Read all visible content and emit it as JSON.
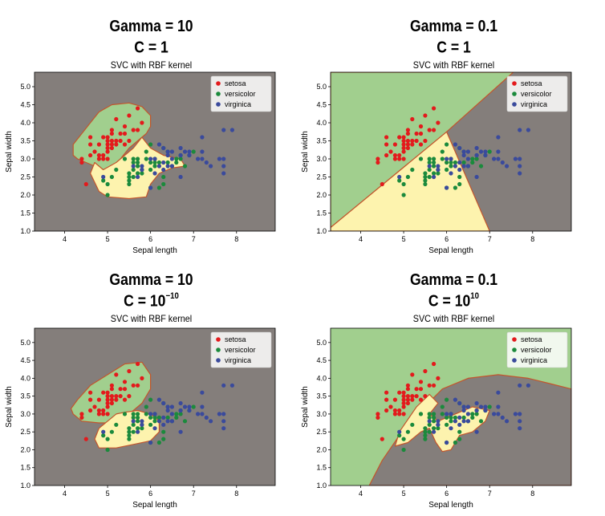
{
  "panels": [
    {
      "gamma_line": "Gamma = 10",
      "c_line": "C = 1",
      "c_exp": "",
      "subtitle": "SVC with RBF kernel"
    },
    {
      "gamma_line": "Gamma = 0.1",
      "c_line": "C = 1",
      "c_exp": "",
      "subtitle": "SVC with RBF kernel"
    },
    {
      "gamma_line": "Gamma = 10",
      "c_line": "C = 10",
      "c_exp": "−10",
      "subtitle": "SVC with RBF kernel"
    },
    {
      "gamma_line": "Gamma = 0.1",
      "c_line": "C = 10",
      "c_exp": "10",
      "subtitle": "SVC with RBF kernel"
    }
  ],
  "chart_data": [
    {
      "type": "scatter",
      "title": "SVC with RBF kernel",
      "xlabel": "Sepal length",
      "ylabel": "Sepal width",
      "xlim": [
        3.3,
        8.9
      ],
      "ylim": [
        1.0,
        5.4
      ],
      "xticks": [
        4,
        5,
        6,
        7,
        8
      ],
      "yticks": [
        1.0,
        1.5,
        2.0,
        2.5,
        3.0,
        3.5,
        4.0,
        4.5,
        5.0
      ],
      "legend_position": "top-right",
      "background_region": "virginica",
      "regions": [
        {
          "class": "setosa",
          "outline": [
            [
              4.3,
              3.0
            ],
            [
              4.5,
              2.9
            ],
            [
              4.7,
              2.8
            ],
            [
              4.9,
              2.6
            ],
            [
              5.1,
              2.7
            ],
            [
              5.3,
              3.0
            ],
            [
              5.5,
              3.3
            ],
            [
              5.7,
              3.5
            ],
            [
              5.9,
              3.7
            ],
            [
              6.0,
              3.9
            ],
            [
              6.0,
              4.2
            ],
            [
              5.8,
              4.45
            ],
            [
              5.5,
              4.55
            ],
            [
              5.1,
              4.5
            ],
            [
              4.8,
              4.3
            ],
            [
              4.6,
              4.0
            ],
            [
              4.4,
              3.7
            ],
            [
              4.2,
              3.4
            ],
            [
              4.2,
              3.1
            ]
          ]
        },
        {
          "class": "versicolor",
          "outline": [
            [
              4.6,
              2.6
            ],
            [
              4.7,
              2.9
            ],
            [
              4.9,
              2.7
            ],
            [
              5.2,
              2.9
            ],
            [
              5.6,
              3.3
            ],
            [
              5.8,
              3.6
            ],
            [
              6.0,
              3.3
            ],
            [
              6.3,
              3.1
            ],
            [
              6.7,
              3.0
            ],
            [
              6.8,
              2.8
            ],
            [
              6.5,
              2.75
            ],
            [
              6.2,
              2.6
            ],
            [
              6.0,
              2.3
            ],
            [
              5.9,
              1.95
            ],
            [
              5.5,
              1.9
            ],
            [
              5.0,
              1.95
            ],
            [
              4.8,
              2.1
            ],
            [
              4.7,
              2.35
            ]
          ]
        }
      ],
      "series": [
        {
          "name": "setosa",
          "color": "#e31a1c",
          "points": [
            [
              4.4,
              3.0
            ],
            [
              4.4,
              2.9
            ],
            [
              4.6,
              3.1
            ],
            [
              4.6,
              3.4
            ],
            [
              4.6,
              3.6
            ],
            [
              4.7,
              3.2
            ],
            [
              4.8,
              3.0
            ],
            [
              4.8,
              3.4
            ],
            [
              4.8,
              3.1
            ],
            [
              4.9,
              3.0
            ],
            [
              4.9,
              3.1
            ],
            [
              4.9,
              3.6
            ],
            [
              5.0,
              3.6
            ],
            [
              5.0,
              3.4
            ],
            [
              5.0,
              3.0
            ],
            [
              5.0,
              3.5
            ],
            [
              5.0,
              3.2
            ],
            [
              5.0,
              3.3
            ],
            [
              5.1,
              3.5
            ],
            [
              5.1,
              3.7
            ],
            [
              5.1,
              3.8
            ],
            [
              5.1,
              3.3
            ],
            [
              5.1,
              3.4
            ],
            [
              5.2,
              3.5
            ],
            [
              5.2,
              3.4
            ],
            [
              5.2,
              4.1
            ],
            [
              5.3,
              3.7
            ],
            [
              5.4,
              3.9
            ],
            [
              5.4,
              3.7
            ],
            [
              5.4,
              3.4
            ],
            [
              5.5,
              4.2
            ],
            [
              5.5,
              3.5
            ],
            [
              5.7,
              4.4
            ],
            [
              5.7,
              3.8
            ],
            [
              5.8,
              4.0
            ],
            [
              4.5,
              2.3
            ],
            [
              5.3,
              3.5
            ],
            [
              5.6,
              3.8
            ]
          ]
        },
        {
          "name": "versicolor",
          "color": "#1b8a3c",
          "points": [
            [
              4.9,
              2.4
            ],
            [
              5.0,
              2.0
            ],
            [
              5.0,
              2.3
            ],
            [
              5.1,
              2.5
            ],
            [
              5.2,
              2.7
            ],
            [
              5.4,
              3.0
            ],
            [
              5.5,
              2.3
            ],
            [
              5.5,
              2.4
            ],
            [
              5.5,
              2.5
            ],
            [
              5.5,
              2.6
            ],
            [
              5.6,
              2.9
            ],
            [
              5.6,
              3.0
            ],
            [
              5.6,
              2.5
            ],
            [
              5.6,
              2.7
            ],
            [
              5.7,
              2.8
            ],
            [
              5.7,
              2.6
            ],
            [
              5.7,
              2.9
            ],
            [
              5.7,
              3.0
            ],
            [
              5.8,
              2.7
            ],
            [
              5.8,
              2.6
            ],
            [
              5.9,
              3.0
            ],
            [
              5.9,
              3.2
            ],
            [
              6.0,
              2.2
            ],
            [
              6.0,
              2.9
            ],
            [
              6.0,
              2.7
            ],
            [
              6.0,
              3.4
            ],
            [
              6.1,
              2.9
            ],
            [
              6.1,
              2.8
            ],
            [
              6.1,
              3.0
            ],
            [
              6.2,
              2.2
            ],
            [
              6.2,
              2.9
            ],
            [
              6.3,
              3.3
            ],
            [
              6.3,
              2.5
            ],
            [
              6.3,
              2.3
            ],
            [
              6.4,
              3.2
            ],
            [
              6.4,
              2.9
            ],
            [
              6.5,
              2.8
            ],
            [
              6.6,
              2.9
            ],
            [
              6.6,
              3.0
            ],
            [
              6.7,
              3.1
            ],
            [
              6.7,
              3.0
            ],
            [
              6.8,
              2.8
            ],
            [
              6.9,
              3.1
            ],
            [
              7.0,
              3.2
            ]
          ]
        },
        {
          "name": "virginica",
          "color": "#3a4a9c",
          "points": [
            [
              4.9,
              2.5
            ],
            [
              5.6,
              2.8
            ],
            [
              5.7,
              2.5
            ],
            [
              5.8,
              2.7
            ],
            [
              5.8,
              2.8
            ],
            [
              6.0,
              3.0
            ],
            [
              6.0,
              2.2
            ],
            [
              6.1,
              3.0
            ],
            [
              6.1,
              2.6
            ],
            [
              6.2,
              3.4
            ],
            [
              6.2,
              2.8
            ],
            [
              6.3,
              3.3
            ],
            [
              6.3,
              2.9
            ],
            [
              6.3,
              2.7
            ],
            [
              6.4,
              3.2
            ],
            [
              6.4,
              2.8
            ],
            [
              6.4,
              3.1
            ],
            [
              6.5,
              3.0
            ],
            [
              6.5,
              3.2
            ],
            [
              6.5,
              2.8
            ],
            [
              6.7,
              3.3
            ],
            [
              6.7,
              2.5
            ],
            [
              6.7,
              3.1
            ],
            [
              6.8,
              3.2
            ],
            [
              6.9,
              3.2
            ],
            [
              6.9,
              3.1
            ],
            [
              7.1,
              3.0
            ],
            [
              7.2,
              3.6
            ],
            [
              7.2,
              3.2
            ],
            [
              7.2,
              3.0
            ],
            [
              7.3,
              2.9
            ],
            [
              7.4,
              2.8
            ],
            [
              7.6,
              3.0
            ],
            [
              7.7,
              3.8
            ],
            [
              7.7,
              2.6
            ],
            [
              7.7,
              2.8
            ],
            [
              7.7,
              3.0
            ],
            [
              7.9,
              3.8
            ]
          ]
        }
      ]
    },
    {
      "type": "scatter",
      "title": "SVC with RBF kernel",
      "xlabel": "Sepal length",
      "ylabel": "Sepal width",
      "xlim": [
        3.3,
        8.9
      ],
      "ylim": [
        1.0,
        5.4
      ],
      "xticks": [
        4,
        5,
        6,
        7,
        8
      ],
      "yticks": [
        1.0,
        1.5,
        2.0,
        2.5,
        3.0,
        3.5,
        4.0,
        4.5,
        5.0
      ],
      "legend_position": "top-right",
      "background_region": "virginica",
      "regions": [
        {
          "class": "setosa",
          "outline": [
            [
              3.3,
              1.1
            ],
            [
              6.0,
              3.75
            ],
            [
              7.55,
              5.4
            ],
            [
              3.3,
              5.4
            ]
          ]
        },
        {
          "class": "versicolor",
          "outline": [
            [
              3.3,
              1.0
            ],
            [
              3.3,
              1.1
            ],
            [
              6.0,
              3.75
            ],
            [
              7.0,
              1.0
            ]
          ]
        }
      ],
      "series": "same_as_panel_1"
    },
    {
      "type": "scatter",
      "title": "SVC with RBF kernel",
      "xlabel": "Sepal length",
      "ylabel": "Sepal width",
      "xlim": [
        3.3,
        8.9
      ],
      "ylim": [
        1.0,
        5.4
      ],
      "xticks": [
        4,
        5,
        6,
        7,
        8
      ],
      "yticks": [
        1.0,
        1.5,
        2.0,
        2.5,
        3.0,
        3.5,
        4.0,
        4.5,
        5.0
      ],
      "legend_position": "top-right",
      "background_region": "virginica",
      "regions": [
        {
          "class": "setosa",
          "outline": [
            [
              4.2,
              3.0
            ],
            [
              4.4,
              2.8
            ],
            [
              4.8,
              2.75
            ],
            [
              5.2,
              2.75
            ],
            [
              5.5,
              3.0
            ],
            [
              5.8,
              3.3
            ],
            [
              6.0,
              3.7
            ],
            [
              6.0,
              4.1
            ],
            [
              5.8,
              4.45
            ],
            [
              5.4,
              4.4
            ],
            [
              5.0,
              4.1
            ],
            [
              4.6,
              3.8
            ],
            [
              4.3,
              3.4
            ],
            [
              4.15,
              3.15
            ]
          ]
        },
        {
          "class": "versicolor",
          "outline": [
            [
              4.8,
              2.6
            ],
            [
              5.0,
              2.8
            ],
            [
              5.2,
              3.0
            ],
            [
              5.4,
              3.05
            ],
            [
              5.7,
              3.1
            ],
            [
              6.0,
              3.0
            ],
            [
              6.2,
              2.8
            ],
            [
              6.2,
              2.5
            ],
            [
              6.0,
              2.25
            ],
            [
              5.6,
              2.15
            ],
            [
              5.2,
              2.05
            ],
            [
              4.8,
              2.05
            ],
            [
              4.7,
              2.3
            ]
          ]
        }
      ],
      "series": "same_as_panel_1"
    },
    {
      "type": "scatter",
      "title": "SVC with RBF kernel",
      "xlabel": "Sepal length",
      "ylabel": "Sepal width",
      "xlim": [
        3.3,
        8.9
      ],
      "ylim": [
        1.0,
        5.4
      ],
      "xticks": [
        4,
        5,
        6,
        7,
        8
      ],
      "yticks": [
        1.0,
        1.5,
        2.0,
        2.5,
        3.0,
        3.5,
        4.0,
        4.5,
        5.0
      ],
      "legend_position": "top-right",
      "background_region": "setosa",
      "regions": [
        {
          "class": "virginica",
          "outline": [
            [
              4.2,
              1.0
            ],
            [
              4.5,
              1.7
            ],
            [
              4.9,
              2.4
            ],
            [
              5.4,
              3.1
            ],
            [
              5.9,
              3.7
            ],
            [
              6.5,
              4.0
            ],
            [
              7.2,
              4.1
            ],
            [
              7.9,
              4.0
            ],
            [
              8.4,
              3.85
            ],
            [
              8.9,
              3.7
            ],
            [
              8.9,
              1.0
            ]
          ]
        },
        {
          "class": "versicolor",
          "outline": [
            [
              4.8,
              2.1
            ],
            [
              4.9,
              2.5
            ],
            [
              5.3,
              3.2
            ],
            [
              5.6,
              3.55
            ],
            [
              5.8,
              3.3
            ],
            [
              5.6,
              3.0
            ],
            [
              5.8,
              2.8
            ],
            [
              6.2,
              3.0
            ],
            [
              6.6,
              3.2
            ],
            [
              7.0,
              3.1
            ],
            [
              6.9,
              2.8
            ],
            [
              6.6,
              2.5
            ],
            [
              6.3,
              2.4
            ],
            [
              6.1,
              2.0
            ],
            [
              5.9,
              1.95
            ],
            [
              5.75,
              2.2
            ],
            [
              5.6,
              2.6
            ],
            [
              5.4,
              2.5
            ],
            [
              5.1,
              2.2
            ]
          ]
        }
      ],
      "series": "same_as_panel_1"
    }
  ],
  "legend": [
    {
      "label": "setosa",
      "color": "#e31a1c"
    },
    {
      "label": "versicolor",
      "color": "#1b8a3c"
    },
    {
      "label": "virginica",
      "color": "#3a4a9c"
    }
  ],
  "region_colors": {
    "setosa": "#a1cf8e",
    "versicolor": "#fdf3ae",
    "virginica": "#847e7b",
    "boundary": "#c3552c"
  }
}
